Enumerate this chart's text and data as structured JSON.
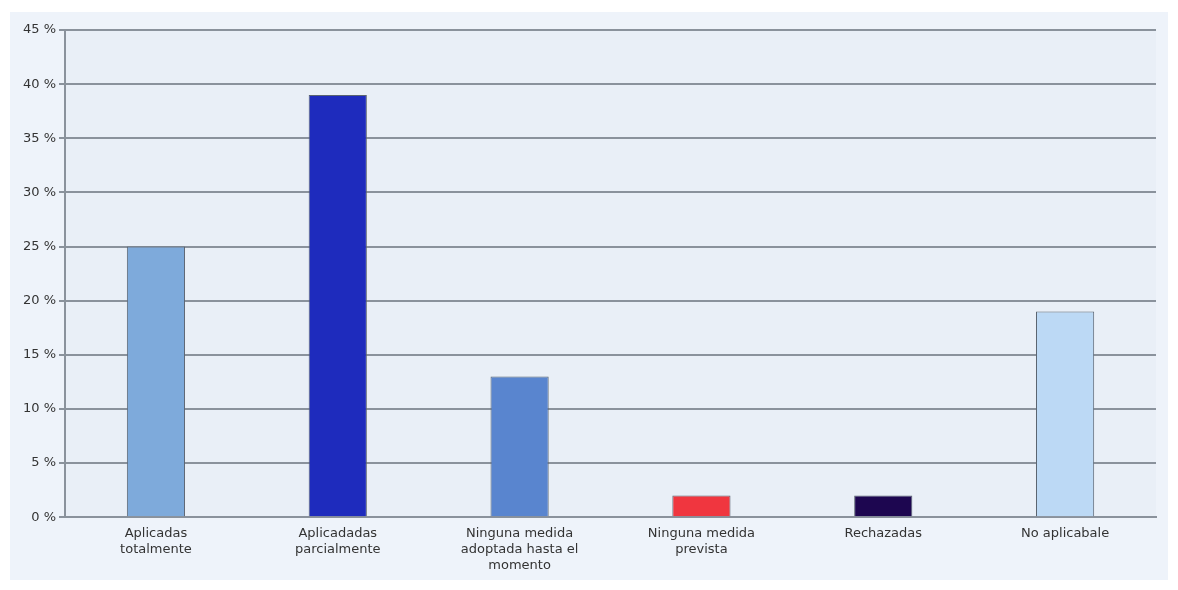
{
  "chart_data": {
    "type": "bar",
    "categories": [
      "Aplicadas totalmente",
      "Aplicadadas parcialmente",
      "Ninguna medida adoptada hasta el momento",
      "Ninguna medida prevista",
      "Rechazadas",
      "No aplicabale"
    ],
    "values": [
      25,
      39,
      13,
      2,
      2,
      19
    ],
    "colors": [
      "#7eaadb",
      "#1e2bbd",
      "#5985cf",
      "#f0363f",
      "#1d0650",
      "#bcd9f5"
    ],
    "ylim": [
      0,
      45
    ],
    "yticks": [
      {
        "value": 0,
        "label": "0 %"
      },
      {
        "value": 5,
        "label": "5 %"
      },
      {
        "value": 10,
        "label": "10 %"
      },
      {
        "value": 15,
        "label": "15 %"
      },
      {
        "value": 20,
        "label": "20 %"
      },
      {
        "value": 25,
        "label": "25 %"
      },
      {
        "value": 30,
        "label": "30 %"
      },
      {
        "value": 35,
        "label": "35 %"
      },
      {
        "value": 40,
        "label": "40 %"
      },
      {
        "value": 45,
        "label": "45 %"
      }
    ],
    "grid": "y",
    "legend": false
  }
}
